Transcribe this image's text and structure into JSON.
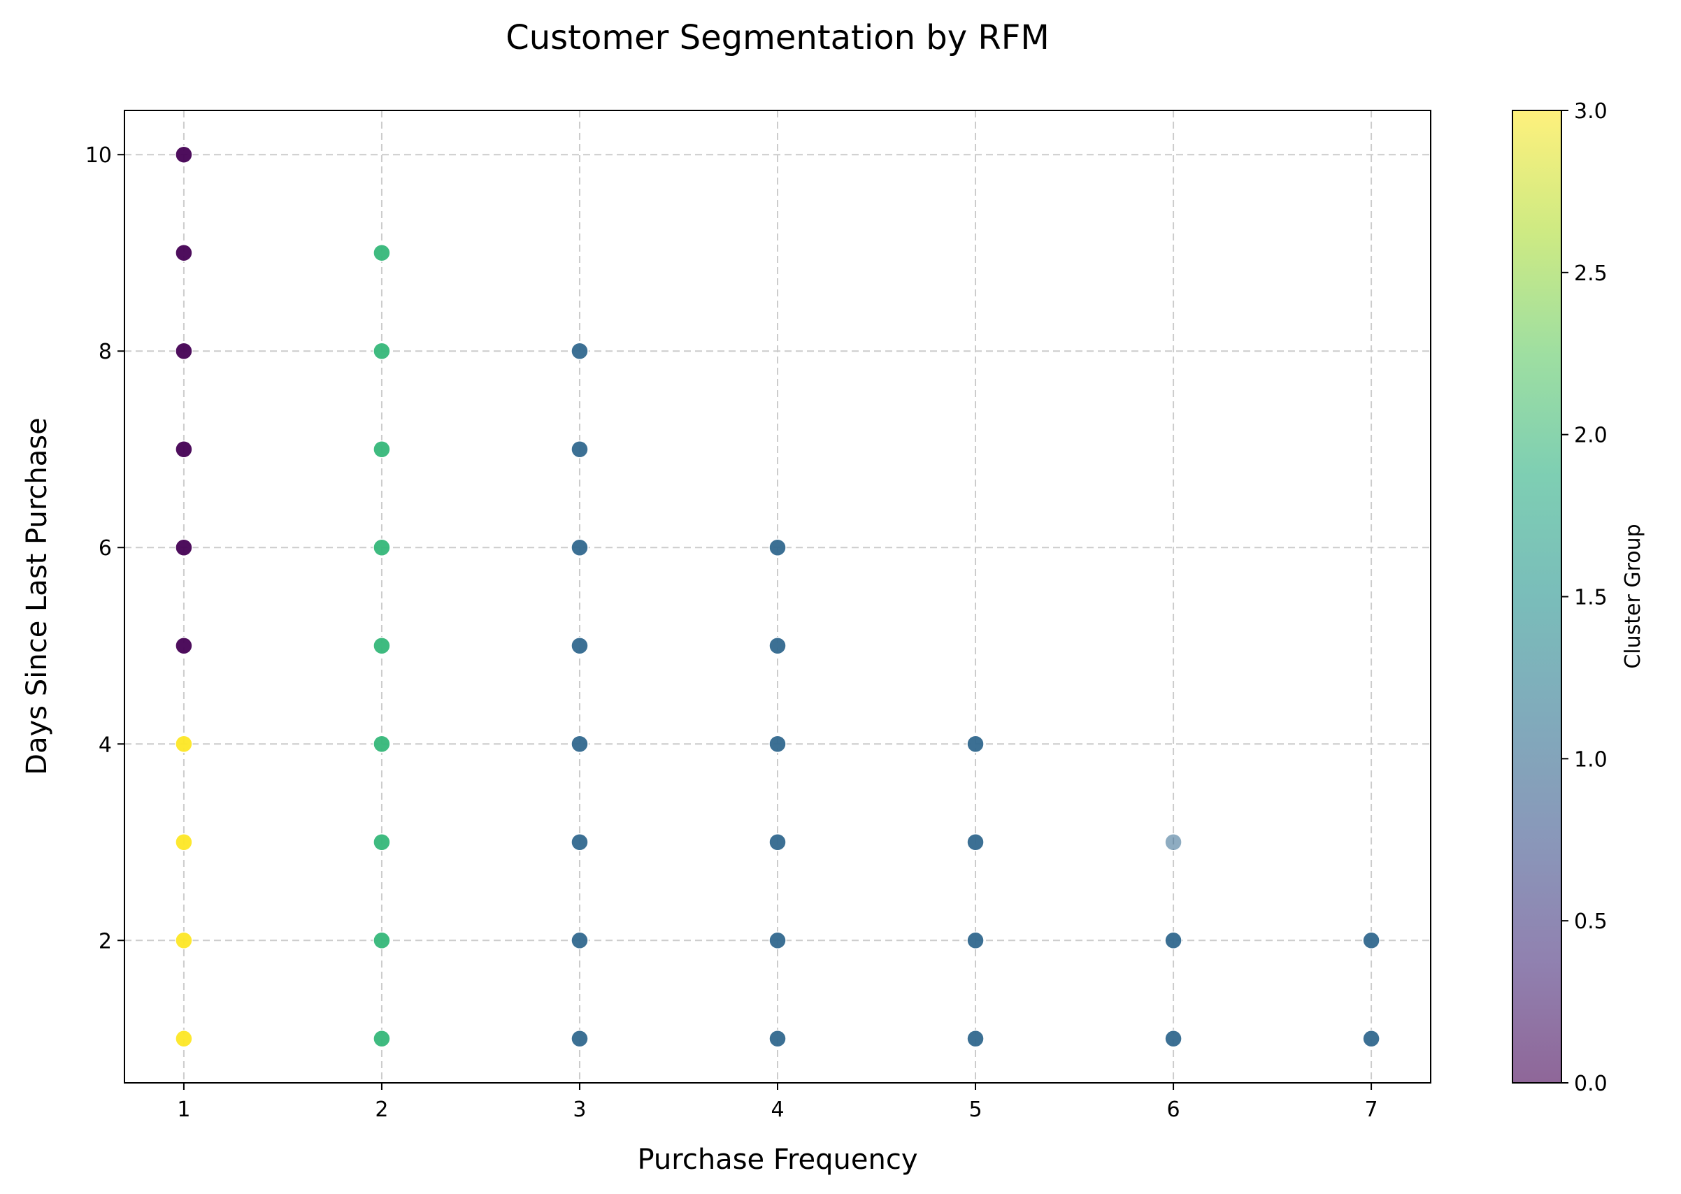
{
  "chart_data": {
    "type": "scatter",
    "title": "Customer Segmentation by RFM",
    "xlabel": "Purchase Frequency",
    "ylabel": "Days Since Last Purchase",
    "xlim": [
      0.7,
      7.3
    ],
    "ylim": [
      0.55,
      10.45
    ],
    "xticks": [
      1,
      2,
      3,
      4,
      5,
      6,
      7
    ],
    "yticks": [
      2,
      4,
      6,
      8,
      10
    ],
    "grid": true,
    "colormap": "viridis",
    "colorbar": {
      "label": "Cluster Group",
      "range": [
        0.0,
        3.0
      ],
      "ticks": [
        "0.0",
        "0.5",
        "1.0",
        "1.5",
        "2.0",
        "2.5",
        "3.0"
      ]
    },
    "points": [
      {
        "x": 1,
        "y": 10,
        "cluster": 0
      },
      {
        "x": 1,
        "y": 9,
        "cluster": 0
      },
      {
        "x": 1,
        "y": 8,
        "cluster": 0
      },
      {
        "x": 1,
        "y": 7,
        "cluster": 0
      },
      {
        "x": 1,
        "y": 6,
        "cluster": 0
      },
      {
        "x": 1,
        "y": 5,
        "cluster": 0
      },
      {
        "x": 1,
        "y": 4,
        "cluster": 3
      },
      {
        "x": 1,
        "y": 3,
        "cluster": 3
      },
      {
        "x": 1,
        "y": 2,
        "cluster": 3
      },
      {
        "x": 1,
        "y": 1,
        "cluster": 3
      },
      {
        "x": 2,
        "y": 9,
        "cluster": 2
      },
      {
        "x": 2,
        "y": 8,
        "cluster": 2
      },
      {
        "x": 2,
        "y": 7,
        "cluster": 2
      },
      {
        "x": 2,
        "y": 6,
        "cluster": 2
      },
      {
        "x": 2,
        "y": 5,
        "cluster": 2
      },
      {
        "x": 2,
        "y": 4,
        "cluster": 2
      },
      {
        "x": 2,
        "y": 3,
        "cluster": 2
      },
      {
        "x": 2,
        "y": 2,
        "cluster": 2
      },
      {
        "x": 2,
        "y": 1,
        "cluster": 2
      },
      {
        "x": 3,
        "y": 8,
        "cluster": 1
      },
      {
        "x": 3,
        "y": 7,
        "cluster": 1
      },
      {
        "x": 3,
        "y": 6,
        "cluster": 1
      },
      {
        "x": 3,
        "y": 5,
        "cluster": 1
      },
      {
        "x": 3,
        "y": 4,
        "cluster": 1
      },
      {
        "x": 3,
        "y": 3,
        "cluster": 1
      },
      {
        "x": 3,
        "y": 2,
        "cluster": 1
      },
      {
        "x": 3,
        "y": 1,
        "cluster": 1
      },
      {
        "x": 4,
        "y": 6,
        "cluster": 1
      },
      {
        "x": 4,
        "y": 5,
        "cluster": 1
      },
      {
        "x": 4,
        "y": 4,
        "cluster": 1
      },
      {
        "x": 4,
        "y": 3,
        "cluster": 1
      },
      {
        "x": 4,
        "y": 2,
        "cluster": 1
      },
      {
        "x": 4,
        "y": 1,
        "cluster": 1
      },
      {
        "x": 5,
        "y": 4,
        "cluster": 1
      },
      {
        "x": 5,
        "y": 3,
        "cluster": 1
      },
      {
        "x": 5,
        "y": 2,
        "cluster": 1
      },
      {
        "x": 5,
        "y": 1,
        "cluster": 1
      },
      {
        "x": 6,
        "y": 3,
        "cluster": 1,
        "faded": true
      },
      {
        "x": 6,
        "y": 2,
        "cluster": 1
      },
      {
        "x": 6,
        "y": 1,
        "cluster": 1
      },
      {
        "x": 7,
        "y": 2,
        "cluster": 1
      },
      {
        "x": 7,
        "y": 1,
        "cluster": 1
      }
    ]
  }
}
